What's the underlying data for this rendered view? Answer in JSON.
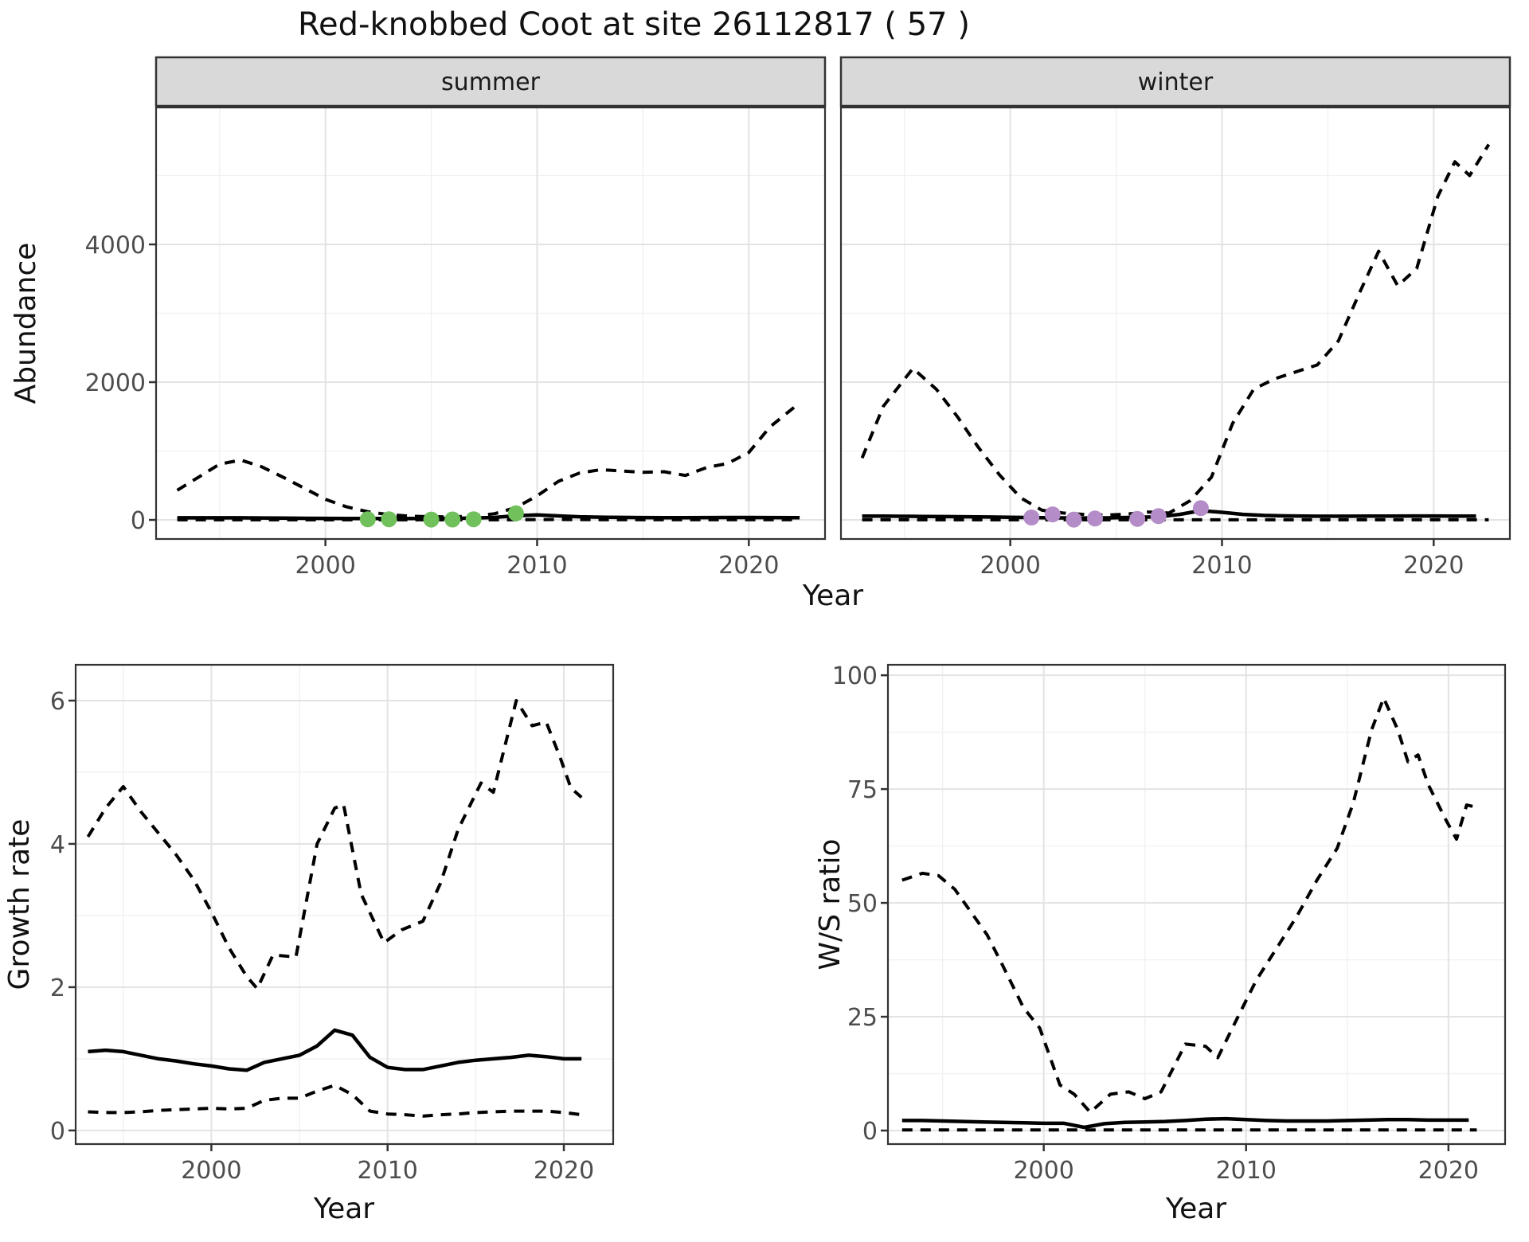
{
  "title": "Red-knobbed Coot at site 26112817 ( 57 )",
  "colors": {
    "summer_points": "#70c05c",
    "winter_points": "#b48cc8",
    "line": "#000000",
    "strip_bg": "#d9d9d9",
    "panel_border": "#333333",
    "grid_major": "#e3e3e3",
    "grid_minor": "#f1f1f1",
    "tick_text": "#4d4d4d"
  },
  "chart_data": [
    {
      "id": "abundance-summer",
      "type": "line",
      "facet_label": "summer",
      "xlabel": "Year",
      "ylabel": "Abundance",
      "x_ticks": [
        2000,
        2010,
        2020
      ],
      "x_minor": [
        1995,
        2005,
        2015
      ],
      "y_ticks": [
        0,
        2000,
        4000
      ],
      "y_minor": [
        1000,
        3000,
        5000
      ],
      "xlim": [
        1992,
        2023.6
      ],
      "ylim": [
        -277,
        5988
      ],
      "grid": true,
      "legend": "none",
      "series": [
        {
          "name": "lower-ci",
          "style": "dashed",
          "x": [
            1993,
            1994,
            1995,
            1996,
            1997,
            1998,
            1999,
            2000,
            2001,
            2002,
            2003,
            2004,
            2005,
            2006,
            2007,
            2008,
            2009,
            2010,
            2011,
            2012,
            2013,
            2014,
            2015,
            2016,
            2017,
            2018,
            2019,
            2020,
            2021,
            2022.4
          ],
          "y": [
            2,
            2,
            2,
            2,
            2,
            2,
            1,
            1,
            1,
            1,
            1,
            1,
            1,
            1,
            1,
            2,
            3,
            5,
            6,
            5,
            4,
            4,
            3,
            3,
            3,
            4,
            4,
            4,
            4,
            4
          ]
        },
        {
          "name": "upper-ci",
          "style": "dashed",
          "x": [
            1993,
            1994,
            1995,
            1996,
            1997,
            1998,
            1999,
            2000,
            2001,
            2002,
            2003,
            2004,
            2005,
            2006,
            2007,
            2008,
            2009,
            2010,
            2011,
            2012,
            2013,
            2014,
            2015,
            2016,
            2017,
            2018,
            2019,
            2020,
            2021,
            2022.4
          ],
          "y": [
            430,
            620,
            810,
            870,
            770,
            620,
            460,
            300,
            190,
            120,
            75,
            55,
            45,
            45,
            55,
            90,
            180,
            350,
            560,
            680,
            730,
            710,
            690,
            700,
            645,
            760,
            820,
            980,
            1350,
            1700
          ]
        },
        {
          "name": "estimate",
          "style": "solid",
          "x": [
            1993,
            1994,
            1995,
            1996,
            1997,
            1998,
            1999,
            2000,
            2001,
            2002,
            2003,
            2004,
            2005,
            2006,
            2007,
            2008,
            2009,
            2010,
            2011,
            2012,
            2013,
            2014,
            2015,
            2016,
            2017,
            2018,
            2019,
            2020,
            2021,
            2022.4
          ],
          "y": [
            30,
            30,
            30,
            30,
            28,
            26,
            24,
            22,
            20,
            20,
            20,
            20,
            22,
            24,
            26,
            36,
            60,
            72,
            58,
            45,
            40,
            36,
            34,
            33,
            33,
            34,
            35,
            35,
            34,
            33
          ]
        }
      ],
      "points": {
        "name": "observed-counts",
        "color": "#70c05c",
        "x": [
          2002,
          2003,
          2005,
          2006,
          2007,
          2009
        ],
        "y": [
          8,
          10,
          5,
          6,
          10,
          95
        ]
      }
    },
    {
      "id": "abundance-winter",
      "type": "line",
      "facet_label": "winter",
      "xlabel": "Year",
      "ylabel": "Abundance",
      "x_ticks": [
        2000,
        2010,
        2020
      ],
      "x_minor": [
        1995,
        2005,
        2015
      ],
      "y_ticks": [
        0,
        2000,
        4000
      ],
      "y_minor": [
        1000,
        3000,
        5000
      ],
      "xlim": [
        1992,
        2023.6
      ],
      "ylim": [
        -277,
        5988
      ],
      "grid": true,
      "legend": "none",
      "series": [
        {
          "name": "lower-ci",
          "style": "dashed",
          "x": [
            1993,
            2008,
            2022.6
          ],
          "y": [
            2,
            2,
            2
          ]
        },
        {
          "name": "upper-ci",
          "style": "dashed",
          "x": [
            1993,
            1994,
            1995.4,
            1996.5,
            1997.5,
            1998.5,
            1999.5,
            2000.5,
            2001.5,
            2002.5,
            2003.5,
            2004.5,
            2005.5,
            2006.5,
            2007.5,
            2008.5,
            2009.5,
            2010.5,
            2011.5,
            2012.5,
            2013.5,
            2014.5,
            2015.5,
            2016.5,
            2017.4,
            2018.3,
            2019.2,
            2020.2,
            2021,
            2021.7,
            2022.6
          ],
          "y": [
            900,
            1650,
            2200,
            1900,
            1500,
            1050,
            650,
            320,
            140,
            100,
            80,
            70,
            85,
            115,
            100,
            280,
            620,
            1400,
            1900,
            2050,
            2150,
            2250,
            2600,
            3300,
            3900,
            3400,
            3650,
            4700,
            5200,
            5000,
            5450
          ]
        },
        {
          "name": "estimate",
          "style": "solid",
          "x": [
            1993,
            1994,
            1995,
            1996,
            1997,
            1998,
            1999,
            2000,
            2001,
            2002,
            2003,
            2004,
            2005,
            2006,
            2007,
            2008,
            2009,
            2010,
            2011,
            2012,
            2013,
            2014,
            2015,
            2016,
            2017,
            2018,
            2019,
            2020,
            2021,
            2022
          ],
          "y": [
            55,
            55,
            52,
            50,
            48,
            45,
            42,
            38,
            34,
            30,
            28,
            28,
            32,
            38,
            45,
            80,
            135,
            110,
            80,
            65,
            58,
            55,
            54,
            54,
            55,
            56,
            57,
            57,
            56,
            55
          ]
        }
      ],
      "points": {
        "name": "observed-counts",
        "color": "#b48cc8",
        "x": [
          2001,
          2002,
          2003,
          2004,
          2006,
          2007,
          2009
        ],
        "y": [
          35,
          80,
          5,
          20,
          15,
          55,
          170
        ]
      }
    },
    {
      "id": "growth-rate",
      "type": "line",
      "facet_label": "",
      "xlabel": "Year",
      "ylabel": "Growth rate",
      "x_ticks": [
        2000,
        2010,
        2020
      ],
      "x_minor": [
        1995,
        2005,
        2015
      ],
      "y_ticks": [
        0,
        2,
        4,
        6
      ],
      "y_minor": [
        1,
        3,
        5
      ],
      "xlim": [
        1992.3,
        2022.8
      ],
      "ylim": [
        -0.19,
        6.5
      ],
      "grid": true,
      "legend": "none",
      "series": [
        {
          "name": "lower-ci",
          "style": "dashed",
          "x": [
            1993,
            1994,
            1995,
            1996,
            1997,
            1998,
            1999,
            2000,
            2001,
            2002,
            2003,
            2004,
            2005,
            2006,
            2007,
            2008,
            2009,
            2010,
            2011,
            2012,
            2013,
            2014,
            2015,
            2016,
            2017,
            2018,
            2019,
            2020,
            2021
          ],
          "y": [
            0.26,
            0.25,
            0.25,
            0.26,
            0.28,
            0.29,
            0.3,
            0.31,
            0.3,
            0.31,
            0.42,
            0.45,
            0.45,
            0.55,
            0.63,
            0.5,
            0.27,
            0.23,
            0.22,
            0.2,
            0.22,
            0.23,
            0.25,
            0.26,
            0.27,
            0.27,
            0.27,
            0.25,
            0.22
          ]
        },
        {
          "name": "upper-ci",
          "style": "dashed",
          "x": [
            1993,
            1994,
            1995,
            1996,
            1997,
            1998,
            1999,
            2000,
            2001,
            2002,
            2002.6,
            2003.5,
            2004.8,
            2006,
            2007,
            2007.5,
            2008.5,
            2009.8,
            2010.8,
            2012,
            2013,
            2014,
            2015.3,
            2016,
            2017.3,
            2018.2,
            2019,
            2019.8,
            2020.4,
            2021
          ],
          "y": [
            4.1,
            4.5,
            4.8,
            4.45,
            4.15,
            3.85,
            3.5,
            3.05,
            2.55,
            2.15,
            1.98,
            2.45,
            2.42,
            4.0,
            4.5,
            4.55,
            3.3,
            2.62,
            2.8,
            2.92,
            3.45,
            4.2,
            4.85,
            4.72,
            6.0,
            5.65,
            5.7,
            5.2,
            4.78,
            4.65
          ]
        },
        {
          "name": "estimate",
          "style": "solid",
          "x": [
            1993,
            1994,
            1995,
            1996,
            1997,
            1998,
            1999,
            2000,
            2001,
            2002,
            2003,
            2004,
            2005,
            2006,
            2007,
            2008,
            2009,
            2010,
            2011,
            2012,
            2013,
            2014,
            2015,
            2016,
            2017,
            2018,
            2019,
            2020,
            2021
          ],
          "y": [
            1.1,
            1.12,
            1.1,
            1.05,
            1.0,
            0.97,
            0.93,
            0.9,
            0.86,
            0.84,
            0.95,
            1.0,
            1.05,
            1.18,
            1.4,
            1.33,
            1.02,
            0.88,
            0.85,
            0.85,
            0.9,
            0.95,
            0.98,
            1.0,
            1.02,
            1.05,
            1.03,
            1.0,
            1.0
          ]
        }
      ],
      "points": null
    },
    {
      "id": "ws-ratio",
      "type": "line",
      "facet_label": "",
      "xlabel": "Year",
      "ylabel": "W/S ratio",
      "x_ticks": [
        2000,
        2010,
        2020
      ],
      "x_minor": [
        1995,
        2005,
        2015
      ],
      "y_ticks": [
        0,
        25,
        50,
        75,
        100
      ],
      "y_minor": [
        12.5,
        37.5,
        62.5,
        87.5
      ],
      "xlim": [
        1992.3,
        2022.8
      ],
      "ylim": [
        -2.97,
        102.3
      ],
      "grid": true,
      "legend": "none",
      "series": [
        {
          "name": "lower-ci",
          "style": "dashed",
          "x": [
            1993,
            2007,
            2021.4
          ],
          "y": [
            0.15,
            0.15,
            0.15
          ]
        },
        {
          "name": "upper-ci",
          "style": "dashed",
          "x": [
            1993,
            1994,
            1994.8,
            1995.6,
            1996.4,
            1997.2,
            1998,
            1999,
            1999.8,
            2000.8,
            2001.5,
            2002.3,
            2003.3,
            2004.2,
            2005,
            2005.8,
            2007,
            2008,
            2008.6,
            2009.6,
            2010.5,
            2011.5,
            2012.5,
            2013.5,
            2014.5,
            2015.3,
            2016.2,
            2016.8,
            2017.5,
            2018,
            2018.5,
            2019,
            2019.9,
            2020.4,
            2020.9,
            2021.4
          ],
          "y": [
            55,
            56.5,
            56,
            53,
            48,
            43,
            36,
            27,
            22.5,
            10,
            8,
            4,
            8,
            8.5,
            7,
            8.5,
            19,
            18.5,
            16,
            25,
            33,
            40,
            47,
            55,
            62,
            72,
            88,
            95,
            88,
            81,
            82.5,
            76,
            68,
            64,
            71.5,
            71
          ]
        },
        {
          "name": "estimate",
          "style": "solid",
          "x": [
            1993,
            1994,
            1995,
            1996,
            1997,
            1998,
            1999,
            2000,
            2001,
            2002,
            2003,
            2004,
            2005,
            2006,
            2007,
            2008,
            2009,
            2010,
            2011,
            2012,
            2013,
            2014,
            2015,
            2016,
            2017,
            2018,
            2019,
            2020,
            2021
          ],
          "y": [
            2.2,
            2.2,
            2.1,
            2.0,
            1.9,
            1.8,
            1.7,
            1.6,
            1.6,
            0.7,
            1.5,
            1.8,
            1.9,
            2.0,
            2.2,
            2.5,
            2.6,
            2.4,
            2.2,
            2.1,
            2.1,
            2.1,
            2.2,
            2.3,
            2.4,
            2.4,
            2.3,
            2.3,
            2.3
          ]
        }
      ],
      "points": null
    }
  ]
}
